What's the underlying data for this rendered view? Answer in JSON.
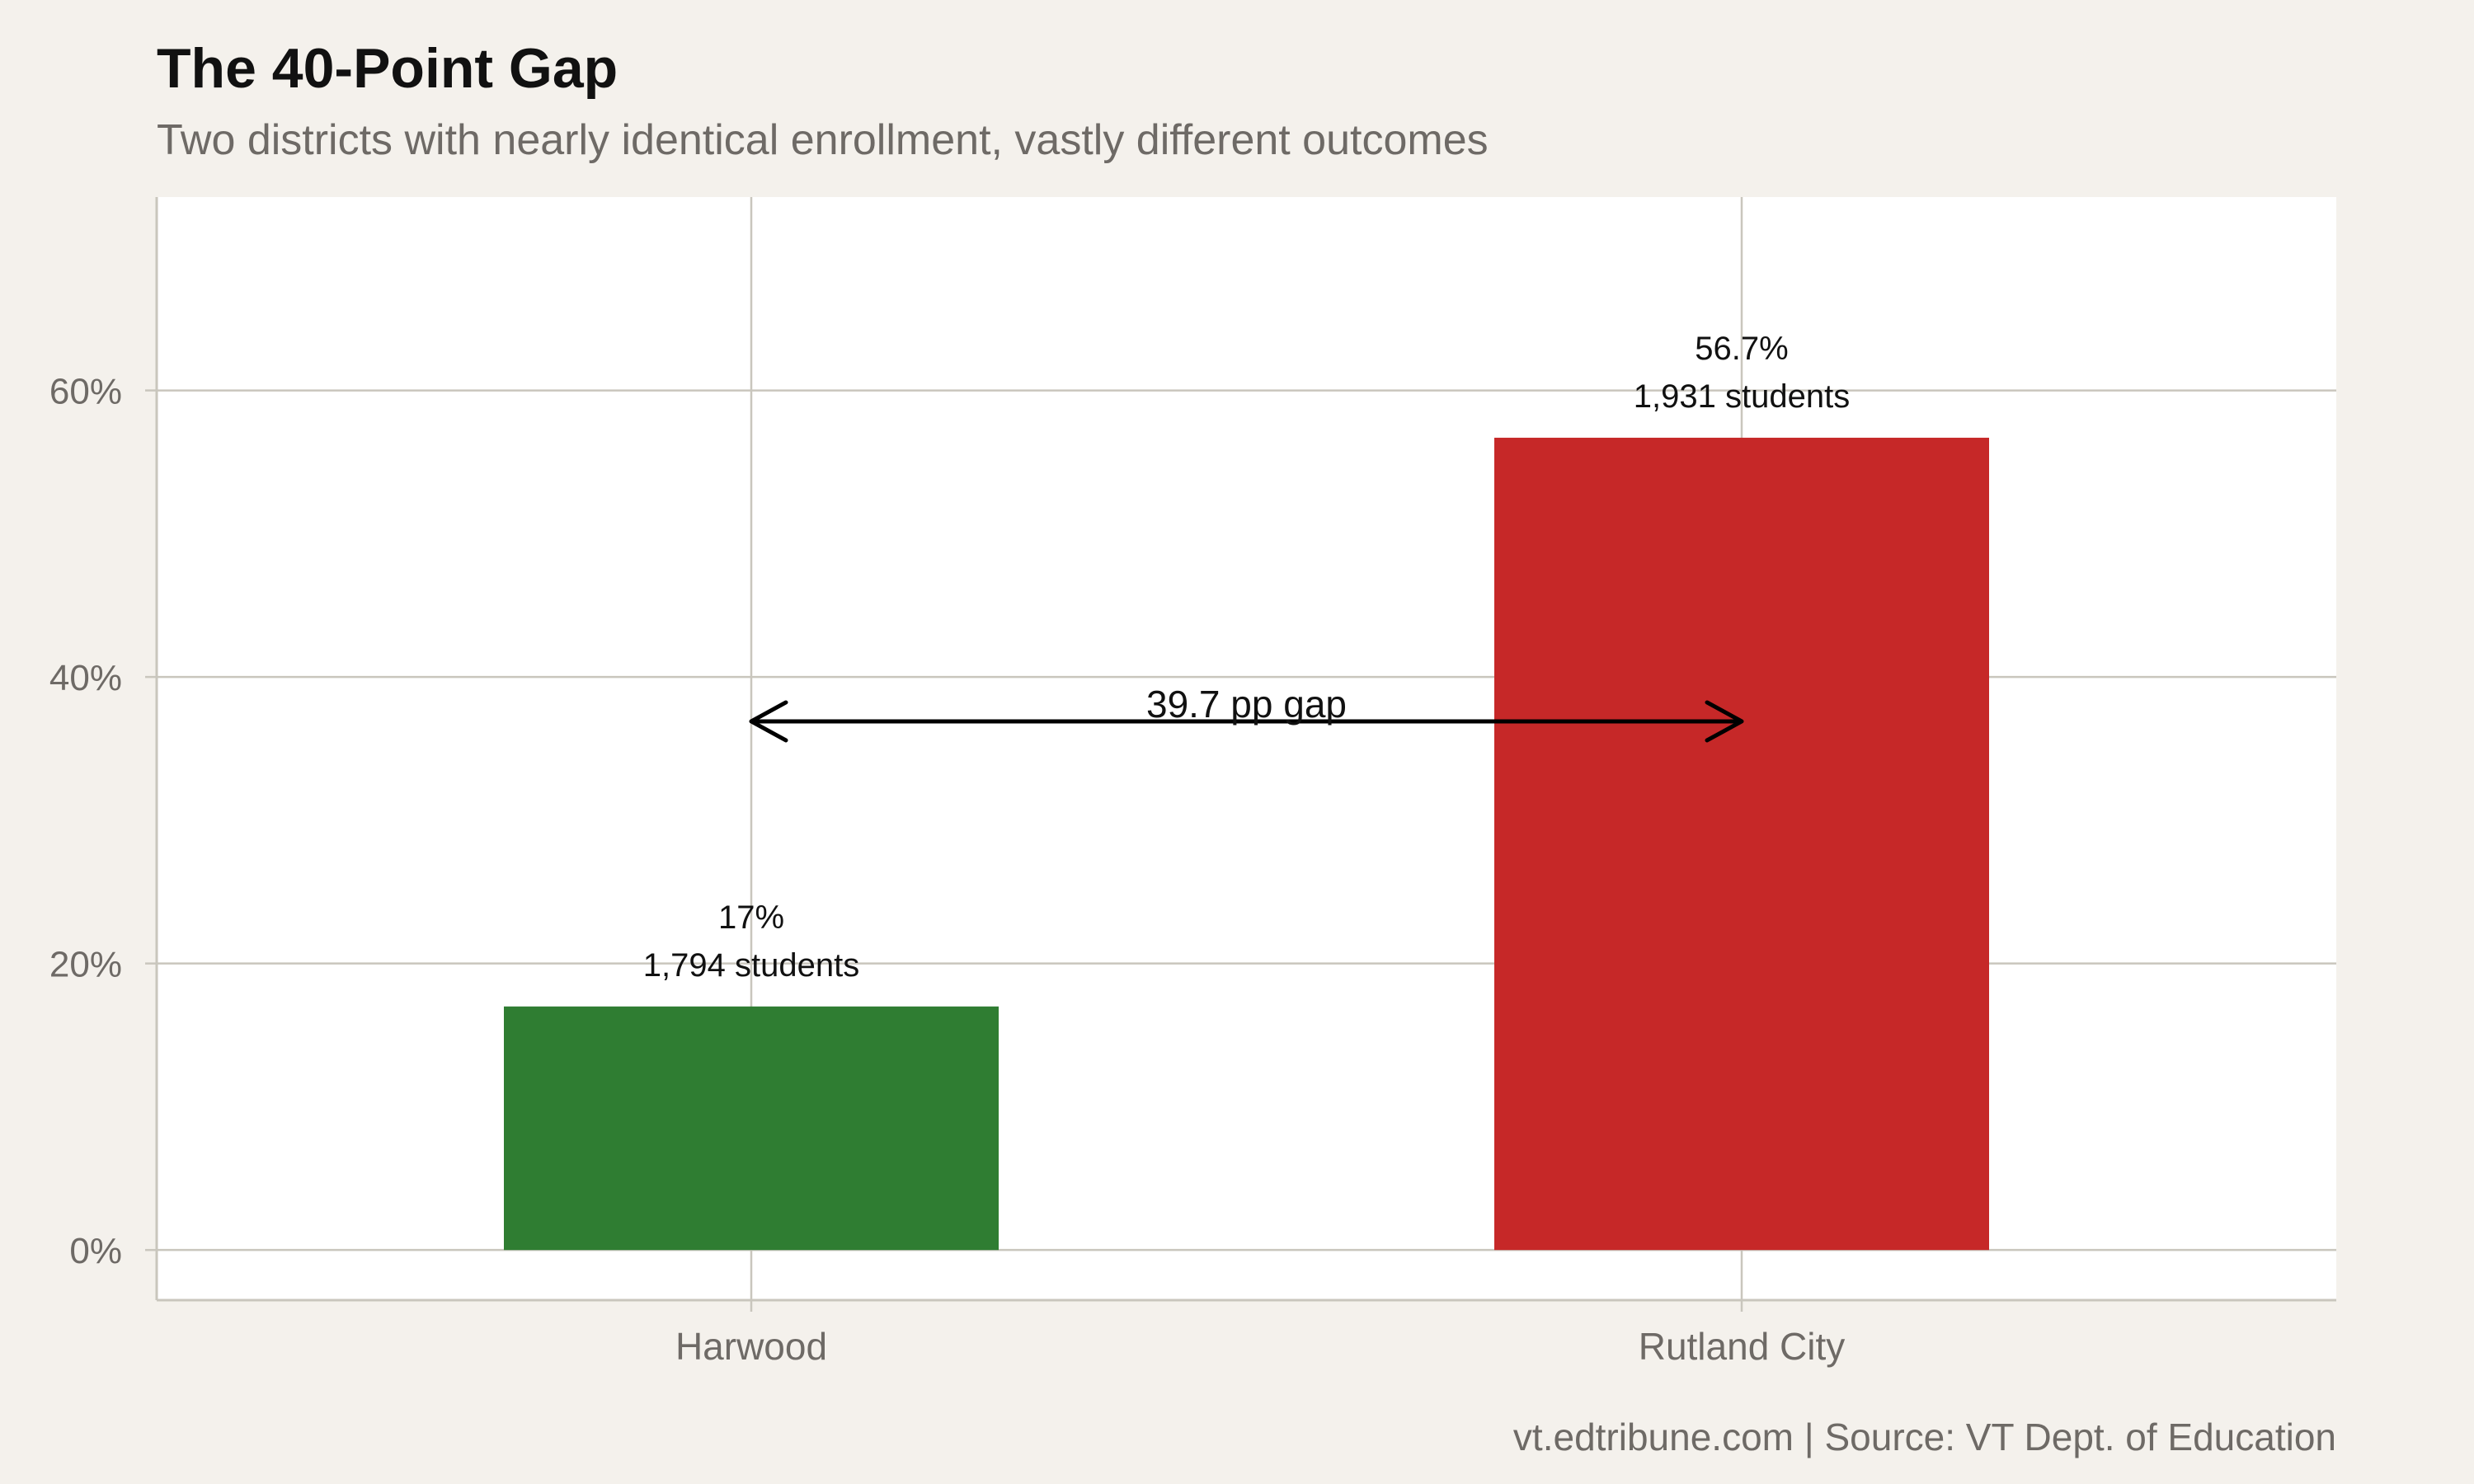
{
  "chart_data": {
    "type": "bar",
    "title": "The 40-Point Gap",
    "subtitle": "Two districts with nearly identical enrollment, vastly different outcomes",
    "categories": [
      "Harwood",
      "Rutland City"
    ],
    "values": [
      17.0,
      56.7
    ],
    "value_labels": [
      "17%",
      "56.7%"
    ],
    "student_labels": [
      "1,794 students",
      "1,931 students"
    ],
    "colors": [
      "#2f7d32",
      "#c62828"
    ],
    "ylim": [
      -3.5,
      73.5
    ],
    "yticks": [
      0,
      20,
      40,
      60
    ],
    "ytick_labels": [
      "0%",
      "20%",
      "40%",
      "60%"
    ],
    "grid": true,
    "annotation": {
      "text": "39.7 pp gap",
      "y": 36.9,
      "from": "Harwood",
      "to": "Rutland City"
    },
    "caption": "vt.edtribune.com | Source: VT Dept. of Education"
  }
}
